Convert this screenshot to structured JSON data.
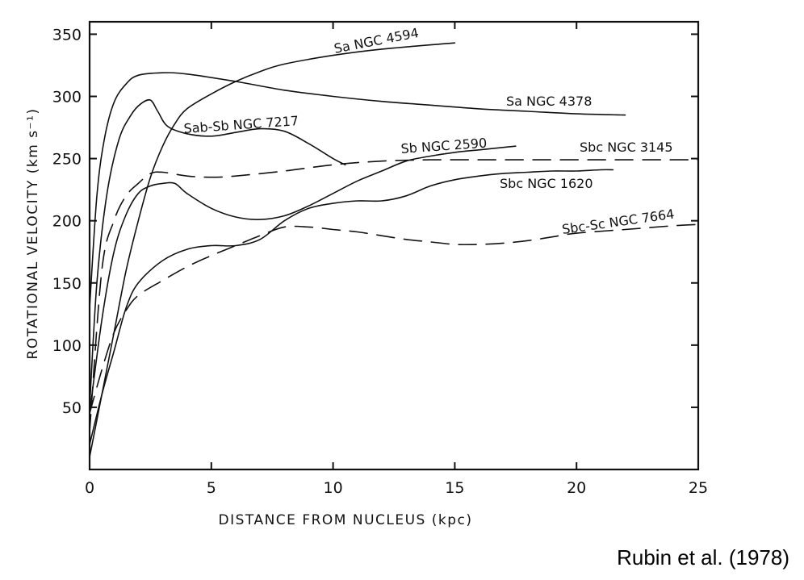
{
  "chart_data": {
    "type": "line",
    "title": "",
    "xlabel": "DISTANCE FROM NUCLEUS (kpc)",
    "ylabel": "ROTATIONAL VELOCITY (km s⁻¹)",
    "xlim": [
      0,
      25
    ],
    "ylim": [
      0,
      360
    ],
    "xticks": [
      0,
      5,
      10,
      15,
      20,
      25
    ],
    "xtick_labels": [
      "0",
      "5",
      "10",
      "15",
      "20",
      "25"
    ],
    "yticks": [
      50,
      100,
      150,
      200,
      250,
      300,
      350
    ],
    "ytick_labels": [
      "50",
      "100",
      "150",
      "200",
      "250",
      "300",
      "350"
    ],
    "grid": false,
    "series": [
      {
        "name": "Sa NGC 4594",
        "dash": "solid",
        "points": [
          [
            0,
            10
          ],
          [
            0.5,
            60
          ],
          [
            1,
            110
          ],
          [
            1.5,
            160
          ],
          [
            2,
            200
          ],
          [
            2.5,
            235
          ],
          [
            3,
            260
          ],
          [
            3.5,
            278
          ],
          [
            4,
            290
          ],
          [
            5,
            302
          ],
          [
            6,
            312
          ],
          [
            7,
            320
          ],
          [
            8,
            326
          ],
          [
            10,
            333
          ],
          [
            12,
            338
          ],
          [
            15,
            343
          ]
        ]
      },
      {
        "name": "Sa NGC 4378",
        "dash": "solid",
        "points": [
          [
            0,
            130
          ],
          [
            0.3,
            220
          ],
          [
            0.6,
            265
          ],
          [
            1,
            295
          ],
          [
            1.5,
            310
          ],
          [
            2,
            317
          ],
          [
            3,
            319
          ],
          [
            4,
            318
          ],
          [
            6,
            312
          ],
          [
            8,
            305
          ],
          [
            10,
            300
          ],
          [
            12,
            296
          ],
          [
            14,
            293
          ],
          [
            16,
            290
          ],
          [
            18,
            288
          ],
          [
            20,
            286
          ],
          [
            22,
            285
          ]
        ]
      },
      {
        "name": "Sab-Sb NGC 7217",
        "dash": "solid",
        "points": [
          [
            0,
            50
          ],
          [
            0.3,
            150
          ],
          [
            0.7,
            220
          ],
          [
            1.2,
            265
          ],
          [
            1.7,
            285
          ],
          [
            2.1,
            294
          ],
          [
            2.5,
            297
          ],
          [
            2.8,
            288
          ],
          [
            3.2,
            276
          ],
          [
            4,
            270
          ],
          [
            5,
            268
          ],
          [
            6,
            271
          ],
          [
            7,
            274
          ],
          [
            8,
            272
          ],
          [
            9,
            262
          ],
          [
            10,
            250
          ],
          [
            10.5,
            245
          ]
        ]
      },
      {
        "name": "Sb NGC 2590",
        "dash": "solid",
        "points": [
          [
            0,
            45
          ],
          [
            0.5,
            120
          ],
          [
            1,
            175
          ],
          [
            1.5,
            205
          ],
          [
            2,
            222
          ],
          [
            2.5,
            228
          ],
          [
            3,
            230
          ],
          [
            3.5,
            230
          ],
          [
            4,
            222
          ],
          [
            5,
            210
          ],
          [
            6,
            203
          ],
          [
            7,
            201
          ],
          [
            8,
            204
          ],
          [
            9,
            212
          ],
          [
            10,
            222
          ],
          [
            11,
            232
          ],
          [
            12,
            240
          ],
          [
            13,
            248
          ],
          [
            14,
            252
          ],
          [
            15,
            255
          ],
          [
            16,
            257
          ],
          [
            17,
            259
          ],
          [
            17.5,
            260
          ]
        ]
      },
      {
        "name": "Sbc NGC 3145",
        "dash": "dashed",
        "points": [
          [
            0,
            30
          ],
          [
            0.5,
            160
          ],
          [
            1,
            200
          ],
          [
            1.5,
            220
          ],
          [
            2,
            230
          ],
          [
            2.5,
            238
          ],
          [
            3,
            239
          ],
          [
            4,
            236
          ],
          [
            5,
            235
          ],
          [
            6,
            236
          ],
          [
            8,
            240
          ],
          [
            10,
            245
          ],
          [
            12,
            248
          ],
          [
            14,
            249
          ],
          [
            16,
            249
          ],
          [
            18,
            249
          ],
          [
            20,
            249
          ],
          [
            22,
            249
          ],
          [
            24,
            249
          ],
          [
            25,
            249
          ]
        ]
      },
      {
        "name": "Sbc NGC 1620",
        "dash": "solid",
        "points": [
          [
            0,
            20
          ],
          [
            0.5,
            60
          ],
          [
            1,
            95
          ],
          [
            1.5,
            130
          ],
          [
            2,
            150
          ],
          [
            3,
            168
          ],
          [
            4,
            177
          ],
          [
            5,
            180
          ],
          [
            6,
            180
          ],
          [
            7,
            185
          ],
          [
            8,
            200
          ],
          [
            9,
            210
          ],
          [
            10,
            214
          ],
          [
            11,
            216
          ],
          [
            12,
            216
          ],
          [
            13,
            220
          ],
          [
            14,
            228
          ],
          [
            15,
            233
          ],
          [
            16,
            236
          ],
          [
            17,
            238
          ],
          [
            18,
            239
          ],
          [
            19,
            240
          ],
          [
            20,
            240
          ],
          [
            21,
            241
          ],
          [
            21.5,
            241
          ]
        ]
      },
      {
        "name": "Sbc-Sc NGC 7664",
        "dash": "dashed",
        "points": [
          [
            0,
            45
          ],
          [
            0.5,
            80
          ],
          [
            1,
            110
          ],
          [
            1.5,
            128
          ],
          [
            2,
            140
          ],
          [
            3,
            152
          ],
          [
            4,
            163
          ],
          [
            5,
            172
          ],
          [
            6,
            180
          ],
          [
            7,
            188
          ],
          [
            8,
            195
          ],
          [
            9,
            195
          ],
          [
            10,
            193
          ],
          [
            11,
            191
          ],
          [
            12,
            188
          ],
          [
            13,
            185
          ],
          [
            14,
            183
          ],
          [
            15,
            181
          ],
          [
            16,
            181
          ],
          [
            17,
            182
          ],
          [
            18,
            184
          ],
          [
            19,
            187
          ],
          [
            20,
            190
          ],
          [
            22,
            193
          ],
          [
            24,
            196
          ],
          [
            25,
            197
          ]
        ]
      }
    ]
  },
  "credit": "Rubin et al. (1978)"
}
